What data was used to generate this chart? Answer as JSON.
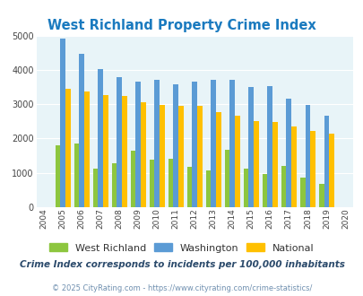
{
  "title": "West Richland Property Crime Index",
  "years": [
    2004,
    2005,
    2006,
    2007,
    2008,
    2009,
    2010,
    2011,
    2012,
    2013,
    2014,
    2015,
    2016,
    2017,
    2018,
    2019,
    2020
  ],
  "west_richland": [
    null,
    1800,
    1850,
    1120,
    1270,
    1650,
    1380,
    1410,
    1180,
    1080,
    1670,
    1120,
    970,
    1190,
    870,
    680,
    null
  ],
  "washington": [
    null,
    4920,
    4470,
    4020,
    3780,
    3660,
    3700,
    3580,
    3670,
    3700,
    3700,
    3490,
    3520,
    3170,
    2980,
    2660,
    null
  ],
  "national": [
    null,
    3460,
    3360,
    3270,
    3250,
    3060,
    2970,
    2960,
    2950,
    2780,
    2660,
    2510,
    2470,
    2360,
    2220,
    2140,
    null
  ],
  "colors": {
    "west_richland": "#8dc63f",
    "washington": "#5b9bd5",
    "national": "#ffc000"
  },
  "legend_labels": [
    "West Richland",
    "Washington",
    "National"
  ],
  "subtitle": "Crime Index corresponds to incidents per 100,000 inhabitants",
  "footer": "© 2025 CityRating.com - https://www.cityrating.com/crime-statistics/",
  "ylim": [
    0,
    5000
  ],
  "yticks": [
    0,
    1000,
    2000,
    3000,
    4000,
    5000
  ],
  "bg_color": "#e8f4f8",
  "title_color": "#1a7abf",
  "subtitle_color": "#2b4a6b",
  "footer_color": "#7090b0",
  "bar_width": 0.27
}
